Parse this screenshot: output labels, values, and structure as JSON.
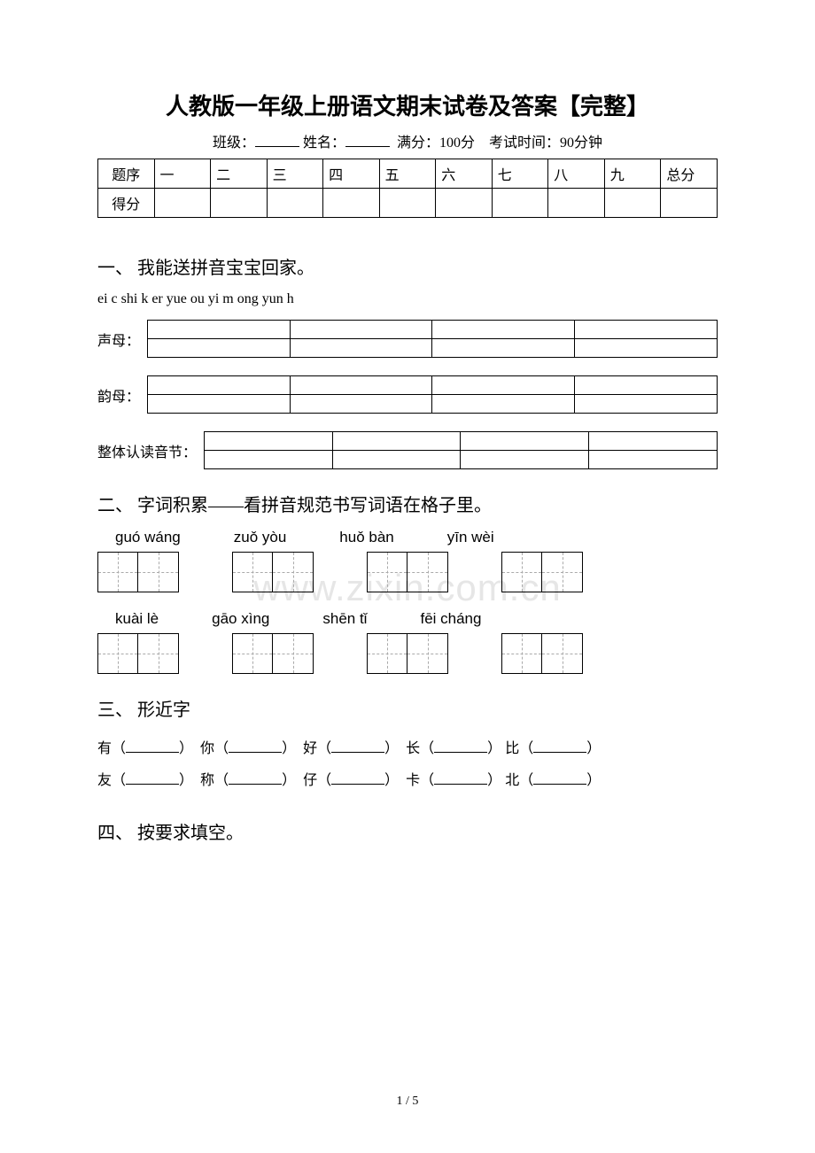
{
  "title": "人教版一年级上册语文期末试卷及答案【完整】",
  "subtitle": {
    "class_label": "班级：",
    "name_label": "姓名：",
    "full_score": "满分：100分",
    "time": "考试时间：90分钟"
  },
  "score_table": {
    "row1_label": "题序",
    "cols": [
      "一",
      "二",
      "三",
      "四",
      "五",
      "六",
      "七",
      "八",
      "九",
      "总分"
    ],
    "row2_label": "得分"
  },
  "section1": {
    "heading": "一、 我能送拼音宝宝回家。",
    "pinyin_list": "ei  c  shi  k  er  yue  ou  yi  m  ong    yun  h",
    "labels": {
      "shengmu": "声母：",
      "yunmu": "韵母：",
      "zhengti": "整体认读音节："
    }
  },
  "section2": {
    "heading": "二、 字词积累——看拼音规范书写词语在格子里。",
    "row1": [
      "guó wáng",
      "zuǒ yòu",
      "huǒ bàn",
      "yīn wèi"
    ],
    "row2": [
      "kuài lè",
      "gāo xìng",
      "shēn tǐ",
      "fēi cháng"
    ]
  },
  "section3": {
    "heading": "三、 形近字",
    "pairs_row1": [
      "有",
      "你",
      "好",
      "长",
      "比"
    ],
    "pairs_row2": [
      "友",
      "称",
      "仔",
      "卡",
      "北"
    ]
  },
  "section4": {
    "heading": "四、 按要求填空。"
  },
  "watermark": "www.zixin.com.cn",
  "footer": "1 / 5",
  "colors": {
    "text": "#000000",
    "background": "#ffffff",
    "watermark": "#e6e6e6",
    "dashed": "#aaaaaa"
  }
}
